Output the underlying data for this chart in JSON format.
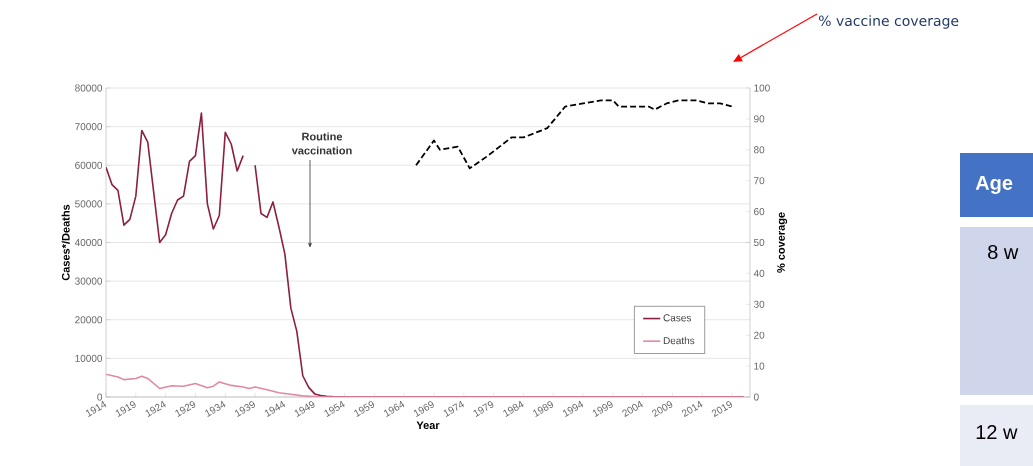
{
  "chart_data": {
    "type": "line",
    "xlabel": "Year",
    "ylabel": "Cases*/Deaths",
    "y2label": "% coverage",
    "xlim": [
      1914,
      2022
    ],
    "xticks": [
      1914,
      1919,
      1924,
      1929,
      1934,
      1939,
      1944,
      1949,
      1954,
      1959,
      1964,
      1969,
      1974,
      1979,
      1984,
      1989,
      1994,
      1999,
      2004,
      2009,
      2014,
      2019
    ],
    "ylim": [
      0,
      80000
    ],
    "yticks": [
      0,
      10000,
      20000,
      30000,
      40000,
      50000,
      60000,
      70000,
      80000
    ],
    "y2lim": [
      0,
      100
    ],
    "y2ticks": [
      0,
      10,
      20,
      30,
      40,
      50,
      60,
      70,
      80,
      90,
      100
    ],
    "grid": "y",
    "legend": "bottom right",
    "series": [
      {
        "name": "Cases",
        "color": "#8b2040",
        "line_style": "solid",
        "x": [
          1914,
          1915,
          1916,
          1917,
          1918,
          1919,
          1920,
          1921,
          1922,
          1923,
          1924,
          1925,
          1926,
          1927,
          1928,
          1929,
          1930,
          1931,
          1932,
          1933,
          1934,
          1935,
          1936,
          1937,
          1938,
          1939,
          1940,
          1941,
          1942,
          1943,
          1944,
          1945,
          1946,
          1947,
          1948,
          1949,
          1950,
          1951,
          1952,
          1955,
          2021
        ],
        "values": [
          59500,
          55000,
          53500,
          44500,
          46000,
          52000,
          69000,
          66000,
          53000,
          40000,
          42000,
          47500,
          51000,
          52000,
          61000,
          62500,
          73500,
          50000,
          43500,
          47000,
          68500,
          65500,
          58500,
          62500,
          null,
          60000,
          47500,
          46500,
          50500,
          44000,
          37000,
          23000,
          17000,
          5500,
          2500,
          800,
          400,
          200,
          100,
          0,
          0
        ]
      },
      {
        "name": "Deaths",
        "color": "#e08aa0",
        "line_style": "solid",
        "x": [
          1914,
          1916,
          1917,
          1919,
          1920,
          1921,
          1923,
          1925,
          1927,
          1929,
          1931,
          1932,
          1933,
          1935,
          1937,
          1938,
          1939,
          1941,
          1943,
          1945,
          1947,
          1950,
          2021
        ],
        "values": [
          5900,
          5200,
          4500,
          4800,
          5400,
          4800,
          2200,
          2900,
          2800,
          3500,
          2400,
          2800,
          3900,
          3000,
          2600,
          2200,
          2600,
          1900,
          1100,
          700,
          300,
          0,
          0
        ]
      },
      {
        "color": "#000000",
        "line_style": "dashed",
        "axis": "y2",
        "x": [
          1966,
          1969,
          1970,
          1973,
          1975,
          1978,
          1982,
          1984,
          1988,
          1991,
          1994,
          1997,
          1999,
          2000,
          2005,
          2006,
          2008,
          2010,
          2013,
          2015,
          2017,
          2019
        ],
        "values": [
          75,
          83,
          80,
          81,
          74,
          78,
          84,
          84,
          87,
          94,
          95,
          96,
          96,
          94,
          94,
          93,
          95,
          96,
          96,
          95,
          95,
          94
        ]
      }
    ],
    "annotations": [
      "Routine vaccination",
      "% vaccine coverage",
      "Age",
      "8 w",
      "12 w"
    ]
  }
}
